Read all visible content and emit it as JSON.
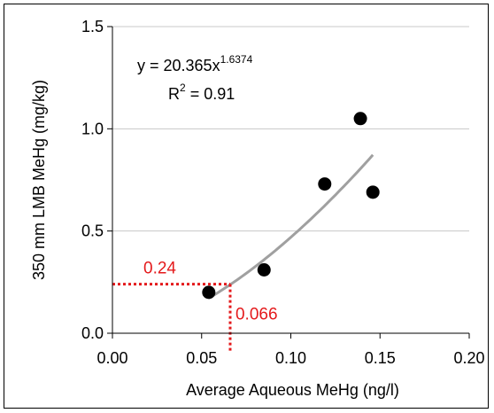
{
  "chart_data": {
    "type": "scatter",
    "xlabel": "Average Aqueous MeHg (ng/l)",
    "ylabel": "350 mm LMB MeHg (mg/kg)",
    "xlim": [
      0,
      0.2
    ],
    "ylim": [
      0,
      1.5
    ],
    "x_ticks": [
      "0.00",
      "0.05",
      "0.10",
      "0.15",
      "0.20"
    ],
    "y_ticks": [
      "0.0",
      "0.5",
      "1.0",
      "1.5"
    ],
    "x_tick_values": [
      0,
      0.05,
      0.1,
      0.15,
      0.2
    ],
    "y_tick_values": [
      0,
      0.5,
      1.0,
      1.5
    ],
    "grid": "horizontal",
    "points": [
      {
        "x": 0.054,
        "y": 0.2
      },
      {
        "x": 0.085,
        "y": 0.31
      },
      {
        "x": 0.119,
        "y": 0.73
      },
      {
        "x": 0.139,
        "y": 1.05
      },
      {
        "x": 0.146,
        "y": 0.69
      }
    ],
    "trendline": {
      "type": "power",
      "coefficient": 20.365,
      "exponent": 1.6374,
      "x_range": [
        0.054,
        0.146
      ],
      "color": "#a0a0a0"
    },
    "equation": {
      "prefix": "y = 20.365x",
      "exponent_text": "1.6374",
      "r2_prefix": "R",
      "r2_sup": "2",
      "r2_value": " = 0.91"
    },
    "annotations": [
      {
        "text": "0.24",
        "y_value": 0.24,
        "color": "#e41a1c"
      },
      {
        "text": "0.066",
        "x_value": 0.066,
        "color": "#e41a1c"
      }
    ],
    "marker_color": "#000000"
  }
}
